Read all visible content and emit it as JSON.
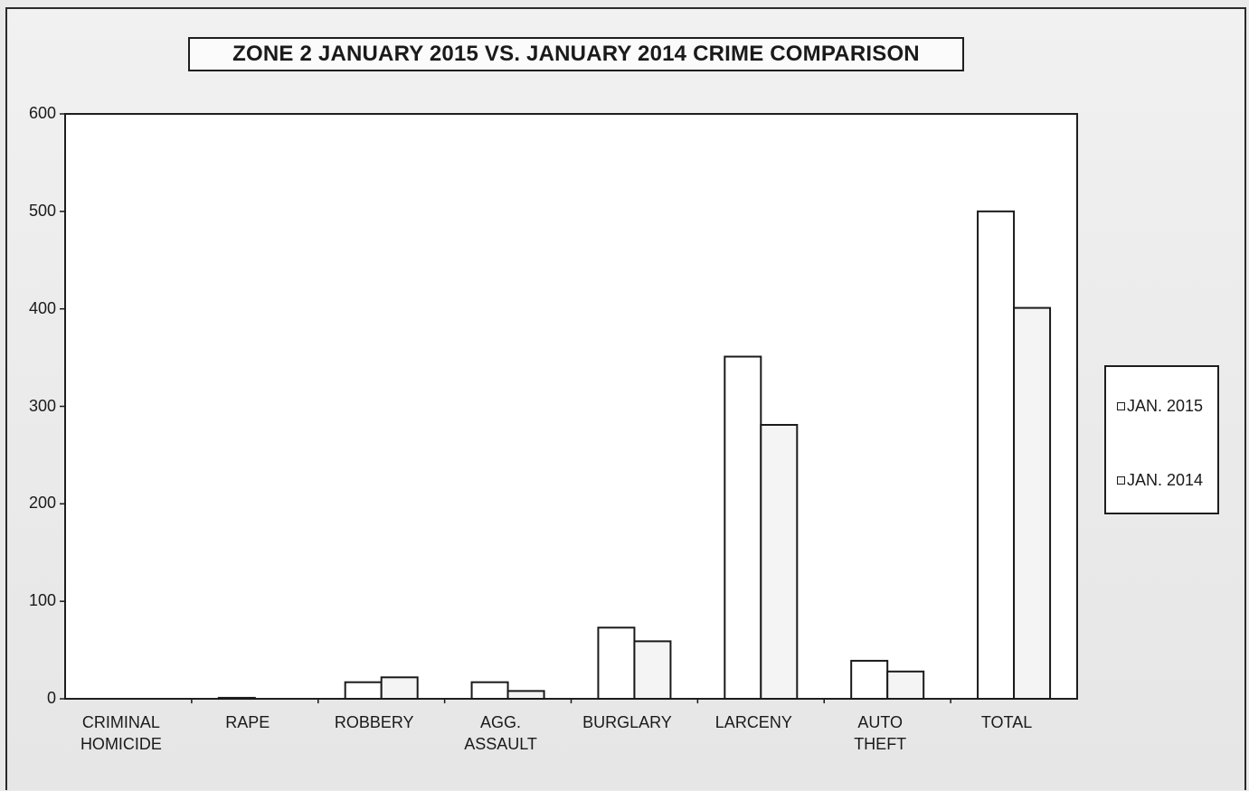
{
  "chart_data": {
    "type": "bar",
    "title": "ZONE 2  JANUARY 2015 VS. JANUARY 2014 CRIME COMPARISON",
    "categories": [
      [
        "CRIMINAL",
        "HOMICIDE"
      ],
      [
        "RAPE"
      ],
      [
        "ROBBERY"
      ],
      [
        "AGG.",
        "ASSAULT"
      ],
      [
        "BURGLARY"
      ],
      [
        "LARCENY"
      ],
      [
        "AUTO",
        "THEFT"
      ],
      [
        "TOTAL"
      ]
    ],
    "series": [
      {
        "name": "JAN. 2015",
        "values": [
          0,
          1,
          17,
          17,
          73,
          351,
          39,
          500
        ]
      },
      {
        "name": "JAN. 2014",
        "values": [
          0,
          0,
          22,
          8,
          59,
          281,
          28,
          401
        ]
      }
    ],
    "ylim": [
      0,
      600
    ],
    "yticks": [
      "0",
      "100",
      "200",
      "300",
      "400",
      "500",
      "600"
    ],
    "grid": false,
    "legend_position": "right"
  }
}
